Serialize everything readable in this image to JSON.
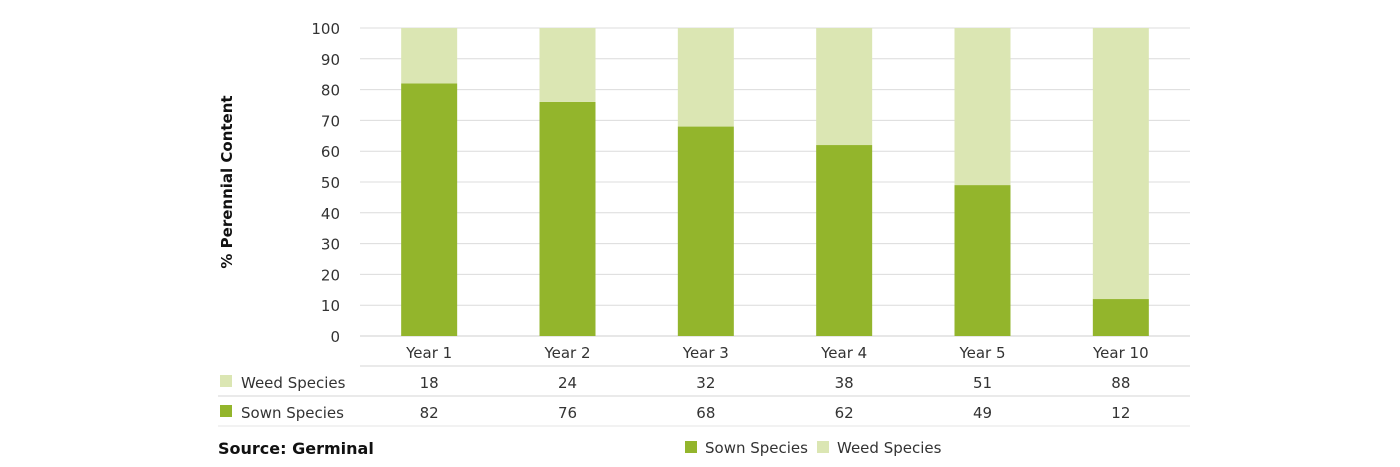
{
  "chart_data": {
    "type": "bar",
    "stacked": true,
    "title": "",
    "xlabel": "",
    "ylabel": "% Perennial Content",
    "ylim": [
      0,
      100
    ],
    "yticks": [
      0,
      10,
      20,
      30,
      40,
      50,
      60,
      70,
      80,
      90,
      100
    ],
    "grid": true,
    "categories": [
      "Year 1",
      "Year 2",
      "Year 3",
      "Year 4",
      "Year 5",
      "Year 10"
    ],
    "series": [
      {
        "name": "Sown Species",
        "color": "#93b52c",
        "values": [
          82,
          76,
          68,
          62,
          49,
          12
        ]
      },
      {
        "name": "Weed Species",
        "color": "#dbe6b3",
        "values": [
          18,
          24,
          32,
          38,
          51,
          88
        ]
      }
    ],
    "table_rows_order": [
      "Weed Species",
      "Sown Species"
    ],
    "legend_position": "bottom",
    "source": "Source: Germinal"
  }
}
